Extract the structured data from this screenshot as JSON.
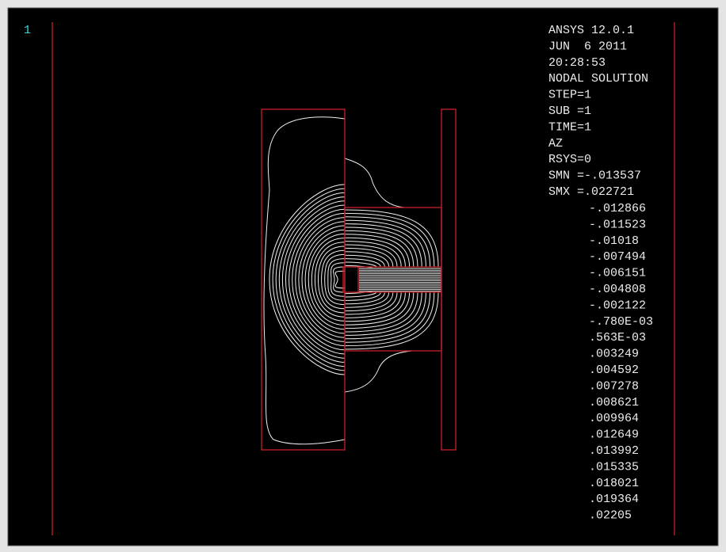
{
  "window_number": "1",
  "info": [
    "ANSYS 12.0.1",
    "JUN  6 2011",
    "20:28:53",
    "NODAL SOLUTION",
    "STEP=1",
    "SUB =1",
    "TIME=1",
    "AZ",
    "RSYS=0",
    "SMN =-.013537",
    "SMX =.022721"
  ],
  "legend": [
    "-.012866",
    "-.011523",
    "-.01018",
    "-.007494",
    "-.006151",
    "-.004808",
    "-.002122",
    "-.780E-03",
    ".563E-03",
    ".003249",
    ".004592",
    ".007278",
    ".008621",
    ".009964",
    ".012649",
    ".013992",
    ".015335",
    ".018021",
    ".019364",
    ".02205"
  ]
}
